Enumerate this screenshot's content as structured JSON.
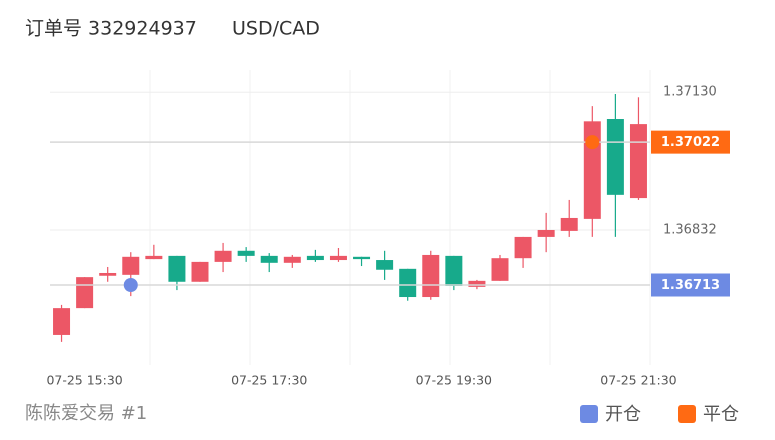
{
  "header": {
    "order": "订单号 332924937",
    "symbol": "USD/CAD"
  },
  "chart_data": {
    "type": "candlestick",
    "categories": [
      null,
      "07-25 15:30",
      null,
      null,
      null,
      null,
      null,
      null,
      null,
      "07-25 17:30",
      null,
      null,
      null,
      null,
      null,
      null,
      null,
      "07-25 19:30",
      null,
      null,
      null,
      null,
      null,
      null,
      null,
      "07-25 21:30"
    ],
    "open": [
      1.36605,
      1.36663,
      1.36733,
      1.36735,
      1.36769,
      1.36776,
      1.3672,
      1.36763,
      1.36787,
      1.36776,
      1.36761,
      1.36776,
      1.36767,
      1.36774,
      1.36767,
      1.36748,
      1.36687,
      1.36776,
      1.36709,
      1.36722,
      1.36771,
      1.36817,
      1.3683,
      1.36856,
      1.37072,
      1.36901
    ],
    "high": [
      1.3667,
      1.3673,
      1.36752,
      1.36784,
      1.368,
      1.36776,
      1.36763,
      1.36804,
      1.36795,
      1.36782,
      1.36778,
      1.36789,
      1.36793,
      1.36774,
      1.36787,
      1.36748,
      1.36787,
      1.36776,
      1.36724,
      1.36778,
      1.36817,
      1.36869,
      1.36897,
      1.371,
      1.37126,
      1.37119
    ],
    "low": [
      1.3659,
      1.36663,
      1.3672,
      1.36689,
      1.36769,
      1.36702,
      1.3672,
      1.36741,
      1.36763,
      1.36741,
      1.3675,
      1.36763,
      1.36763,
      1.36754,
      1.36724,
      1.36679,
      1.36681,
      1.36702,
      1.36704,
      1.36722,
      1.3675,
      1.36784,
      1.36817,
      1.36817,
      1.36817,
      1.36897
    ],
    "close": [
      1.36663,
      1.3673,
      1.36739,
      1.36774,
      1.36776,
      1.3672,
      1.36763,
      1.36787,
      1.36776,
      1.36761,
      1.36774,
      1.36767,
      1.36776,
      1.36769,
      1.36746,
      1.36687,
      1.36778,
      1.36711,
      1.36722,
      1.36771,
      1.36817,
      1.36832,
      1.36858,
      1.37067,
      1.36908,
      1.37061
    ],
    "up_color": "#ec5766",
    "down_color": "#17aa8b",
    "ylim": [
      1.3654,
      1.37178
    ],
    "yticks": [
      {
        "value": 1.3713,
        "label": "1.37130"
      },
      1.36832
    ],
    "grid": true,
    "markers": [
      {
        "name": "开仓",
        "color": "#6d8ae3",
        "values": [
          null,
          null,
          null,
          1.36713,
          null,
          null,
          null,
          null,
          null,
          null,
          null,
          null,
          null,
          null,
          null,
          null,
          null,
          null,
          null,
          null,
          null,
          null,
          null,
          null,
          null,
          null
        ]
      },
      {
        "name": "平仓",
        "color": "#ff6a13",
        "values": [
          null,
          null,
          null,
          null,
          null,
          null,
          null,
          null,
          null,
          null,
          null,
          null,
          null,
          null,
          null,
          null,
          null,
          null,
          null,
          null,
          null,
          null,
          null,
          1.37022,
          null,
          null
        ]
      }
    ]
  },
  "footer": {
    "author": "陈陈爱交易 #1"
  }
}
